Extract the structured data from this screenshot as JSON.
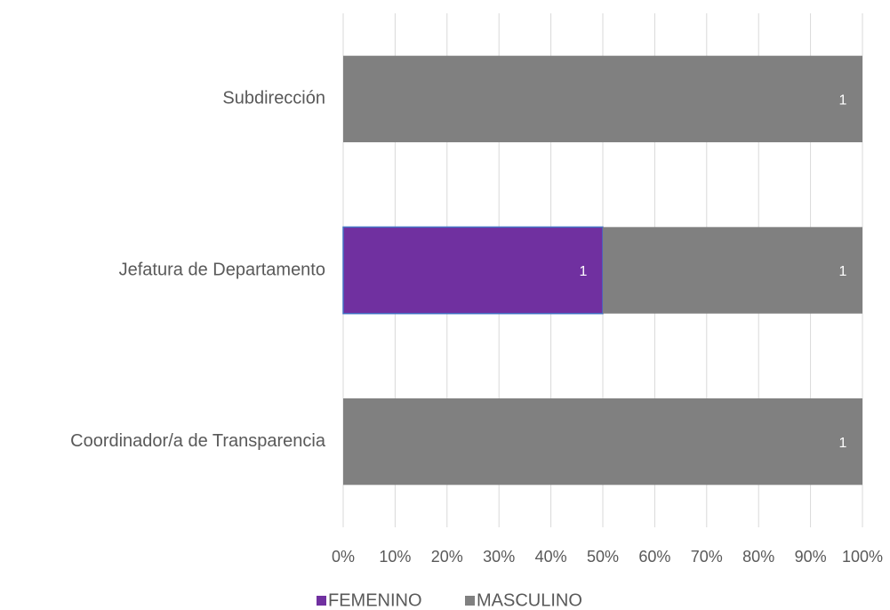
{
  "chart_data": {
    "type": "bar",
    "orientation": "horizontal",
    "stacking": "percent",
    "categories": [
      "Subdirección",
      "Jefatura de Departamento",
      "Coordinador/a de Transparencia"
    ],
    "series": [
      {
        "name": "FEMENINO",
        "color": "#7030a0",
        "values": [
          0,
          1,
          0
        ]
      },
      {
        "name": "MASCULINO",
        "color": "#808080",
        "values": [
          1,
          1,
          1
        ]
      }
    ],
    "xlim": [
      0,
      100
    ],
    "xticks": [
      {
        "value": 0,
        "label": "0%"
      },
      {
        "value": 10,
        "label": "10%"
      },
      {
        "value": 20,
        "label": "20%"
      },
      {
        "value": 30,
        "label": "30%"
      },
      {
        "value": 40,
        "label": "40%"
      },
      {
        "value": 50,
        "label": "50%"
      },
      {
        "value": 60,
        "label": "60%"
      },
      {
        "value": 70,
        "label": "70%"
      },
      {
        "value": 80,
        "label": "80%"
      },
      {
        "value": 90,
        "label": "90%"
      },
      {
        "value": 100,
        "label": "100%"
      }
    ],
    "grid": true,
    "legend": "bottom"
  }
}
